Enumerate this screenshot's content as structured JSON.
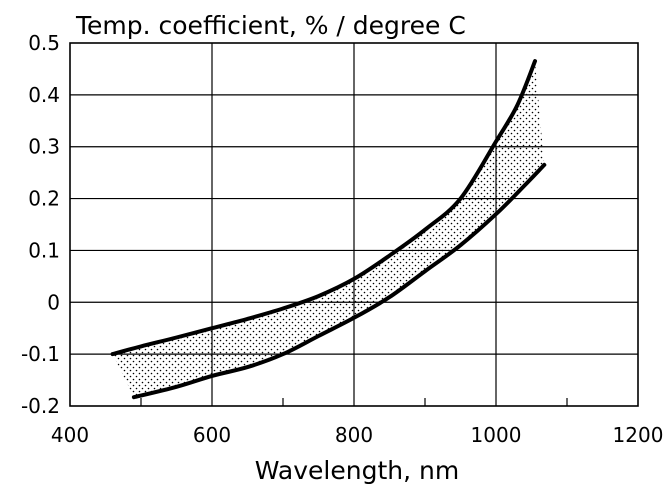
{
  "chart_data": {
    "type": "line",
    "title": "Temp. coefficient, % / degree C",
    "xlabel": "Wavelength, nm",
    "ylabel": "",
    "xlim": [
      400,
      1200
    ],
    "ylim": [
      -0.2,
      0.5
    ],
    "x_ticks": [
      "400",
      "600",
      "800",
      "1000",
      "1200"
    ],
    "y_ticks": [
      "0.5",
      "0.4",
      "0.3",
      "0.2",
      "0.1",
      "0",
      "-0.1",
      "-0.2"
    ],
    "grid": true,
    "legend": "none",
    "shaded_band": "between upper and lower curves (dotted fill)",
    "series": [
      {
        "x": [
          460,
          500,
          550,
          600,
          650,
          700,
          750,
          800,
          850,
          900,
          950,
          1000,
          1030,
          1055
        ],
        "y": [
          -0.1,
          -0.085,
          -0.068,
          -0.05,
          -0.032,
          -0.012,
          0.012,
          0.045,
          0.09,
          0.14,
          0.2,
          0.31,
          0.38,
          0.465
        ]
      },
      {
        "x": [
          490,
          550,
          600,
          650,
          700,
          750,
          800,
          850,
          900,
          950,
          1000,
          1040,
          1068
        ],
        "y": [
          -0.183,
          -0.163,
          -0.142,
          -0.125,
          -0.1,
          -0.065,
          -0.03,
          0.01,
          0.06,
          0.11,
          0.17,
          0.225,
          0.265
        ]
      }
    ]
  }
}
